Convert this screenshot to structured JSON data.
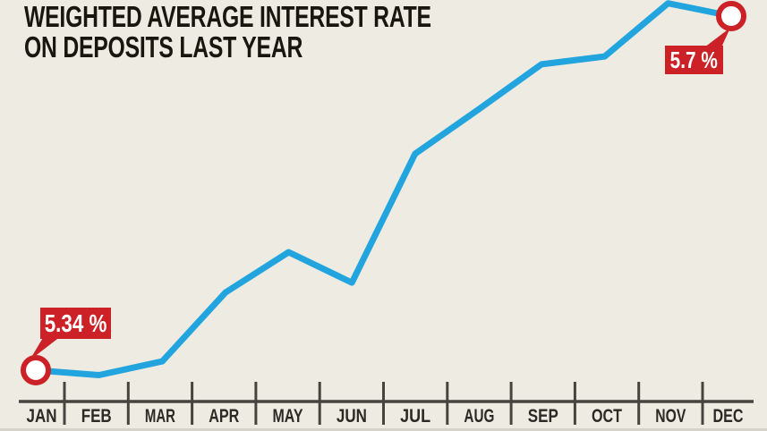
{
  "title": {
    "line1": "WEIGHTED AVERAGE INTEREST RATE",
    "line2": "ON DEPOSITS LAST YEAR"
  },
  "annotations": {
    "start": {
      "month": "JAN",
      "label": "5.34 %"
    },
    "end": {
      "month": "DEC",
      "label": "5.7 %"
    }
  },
  "colors": {
    "background": "#eeebe2",
    "line": "#22a5de",
    "accent_red": "#cb2127",
    "marker_fill": "#ffffff",
    "axis": "#45443f",
    "label_text": "#2b2a25",
    "title_text": "#17160f",
    "callout_text": "#ffffff"
  },
  "chart_data": {
    "type": "line",
    "title": "WEIGHTED AVERAGE INTEREST RATE ON DEPOSITS LAST YEAR",
    "categories": [
      "JAN",
      "FEB",
      "MAR",
      "APR",
      "MAY",
      "JUN",
      "JUL",
      "AUG",
      "SEP",
      "OCT",
      "NOV",
      "DEC"
    ],
    "series": [
      {
        "name": "Weighted average interest rate on deposits (%)",
        "values": [
          5.34,
          5.335,
          5.349,
          5.419,
          5.46,
          5.429,
          5.56,
          5.605,
          5.651,
          5.659,
          5.713,
          5.7
        ]
      }
    ],
    "labeled_points": [
      {
        "category": "JAN",
        "value": 5.34,
        "label": "5.34 %"
      },
      {
        "category": "DEC",
        "value": 5.7,
        "label": "5.7 %"
      }
    ],
    "xlabel": "",
    "ylabel": "",
    "ylim": [
      5.32,
      5.72
    ],
    "grid": false,
    "legend": "none",
    "line_color": "#22a5de",
    "annotation_color": "#cb2127"
  }
}
